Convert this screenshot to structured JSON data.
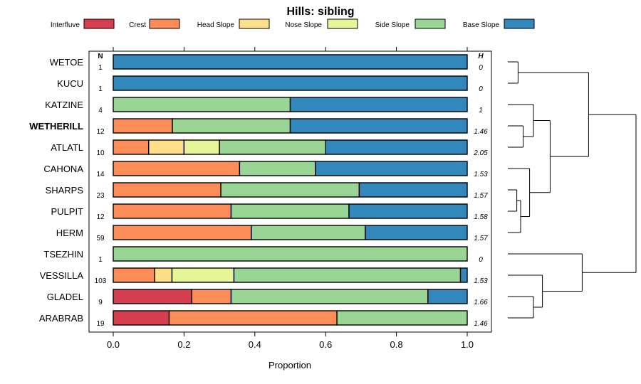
{
  "chart_data": {
    "type": "bar",
    "orientation": "horizontal",
    "stacked": true,
    "title": "Hills: sibling",
    "xlabel": "Proportion",
    "ylabel": "",
    "xlim": [
      0,
      1
    ],
    "xticks": [
      "0.0",
      "0.2",
      "0.4",
      "0.6",
      "0.8",
      "1.0"
    ],
    "legend_position": "top",
    "n_header": "N",
    "h_header": "H",
    "series": [
      {
        "name": "Interfluve",
        "color": "#d53e4f"
      },
      {
        "name": "Crest",
        "color": "#fc8d59"
      },
      {
        "name": "Head Slope",
        "color": "#fee08b"
      },
      {
        "name": "Nose Slope",
        "color": "#e6f598"
      },
      {
        "name": "Side Slope",
        "color": "#99d594"
      },
      {
        "name": "Base Slope",
        "color": "#3288bd"
      }
    ],
    "categories": [
      {
        "name": "WETOE",
        "bold": false,
        "n": "1",
        "h": "0",
        "values": [
          0,
          0,
          0,
          0,
          0,
          1.0
        ]
      },
      {
        "name": "KUCU",
        "bold": false,
        "n": "1",
        "h": "0",
        "values": [
          0,
          0,
          0,
          0,
          0,
          1.0
        ]
      },
      {
        "name": "KATZINE",
        "bold": false,
        "n": "4",
        "h": "1",
        "values": [
          0,
          0,
          0,
          0,
          0.5,
          0.5
        ]
      },
      {
        "name": "WETHERILL",
        "bold": true,
        "n": "12",
        "h": "1.46",
        "values": [
          0,
          0.167,
          0,
          0,
          0.333,
          0.5
        ]
      },
      {
        "name": "ATLATL",
        "bold": false,
        "n": "10",
        "h": "2.05",
        "values": [
          0,
          0.1,
          0.1,
          0.1,
          0.3,
          0.4
        ]
      },
      {
        "name": "CAHONA",
        "bold": false,
        "n": "14",
        "h": "1.53",
        "values": [
          0,
          0.357,
          0,
          0,
          0.214,
          0.429
        ]
      },
      {
        "name": "SHARPS",
        "bold": false,
        "n": "23",
        "h": "1.57",
        "values": [
          0,
          0.304,
          0,
          0,
          0.391,
          0.305
        ]
      },
      {
        "name": "PULPIT",
        "bold": false,
        "n": "12",
        "h": "1.58",
        "values": [
          0,
          0.333,
          0,
          0,
          0.333,
          0.334
        ]
      },
      {
        "name": "HERM",
        "bold": false,
        "n": "59",
        "h": "1.57",
        "values": [
          0,
          0.39,
          0,
          0,
          0.322,
          0.288
        ]
      },
      {
        "name": "TSEZHIN",
        "bold": false,
        "n": "1",
        "h": "0",
        "values": [
          0,
          0,
          0,
          0,
          1.0,
          0
        ]
      },
      {
        "name": "VESSILLA",
        "bold": false,
        "n": "103",
        "h": "1.53",
        "values": [
          0,
          0.117,
          0.049,
          0.175,
          0.64,
          0.019
        ]
      },
      {
        "name": "GLADEL",
        "bold": false,
        "n": "9",
        "h": "1.66",
        "values": [
          0.222,
          0.111,
          0,
          0,
          0.556,
          0.111
        ]
      },
      {
        "name": "ARABRAB",
        "bold": false,
        "n": "19",
        "h": "1.46",
        "values": [
          0.158,
          0.474,
          0,
          0,
          0.368,
          0
        ]
      }
    ],
    "dendrogram": {
      "leaves": [
        "WETOE",
        "KUCU",
        "KATZINE",
        "WETHERILL",
        "ATLATL",
        "CAHONA",
        "SHARPS",
        "PULPIT",
        "HERM",
        "TSEZHIN",
        "VESSILLA",
        "GLADEL",
        "ARABRAB"
      ],
      "merges": [
        {
          "id": "n1",
          "left": "WETOE",
          "right": "KUCU",
          "height": 0.08
        },
        {
          "id": "n2",
          "left": "WETHERILL",
          "right": "ATLATL",
          "height": 0.12
        },
        {
          "id": "n3",
          "left": "KATZINE",
          "right": "n2",
          "height": 0.2
        },
        {
          "id": "n4",
          "left": "SHARPS",
          "right": "PULPIT",
          "height": 0.07
        },
        {
          "id": "n5",
          "left": "n4",
          "right": "HERM",
          "height": 0.1
        },
        {
          "id": "n6",
          "left": "CAHONA",
          "right": "n5",
          "height": 0.17
        },
        {
          "id": "n7",
          "left": "n3",
          "right": "n6",
          "height": 0.33
        },
        {
          "id": "n8",
          "left": "n1",
          "right": "n7",
          "height": 0.63
        },
        {
          "id": "n9",
          "left": "GLADEL",
          "right": "ARABRAB",
          "height": 0.2
        },
        {
          "id": "n10",
          "left": "VESSILLA",
          "right": "n9",
          "height": 0.27
        },
        {
          "id": "n11",
          "left": "TSEZHIN",
          "right": "n10",
          "height": 0.58
        },
        {
          "id": "n12",
          "left": "n8",
          "right": "n11",
          "height": 1.0
        }
      ]
    }
  }
}
